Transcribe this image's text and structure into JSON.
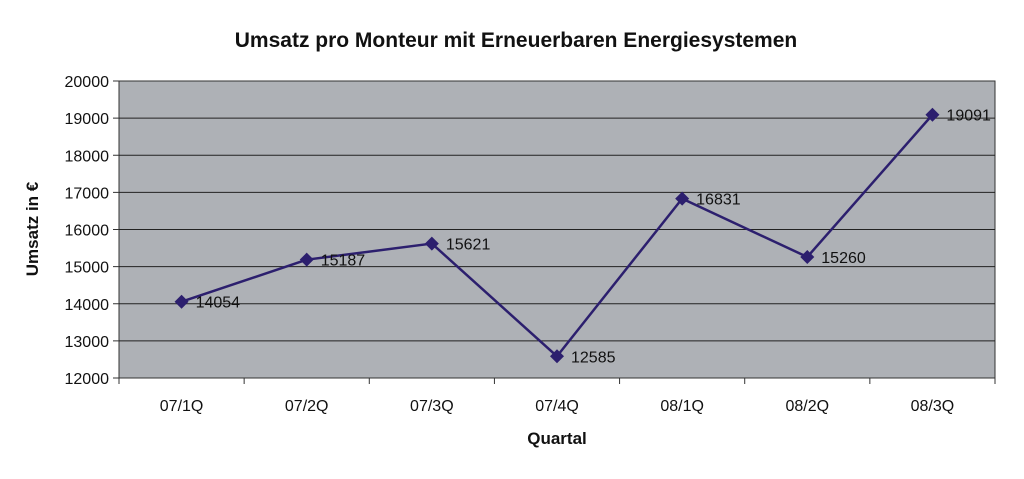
{
  "chart_data": {
    "type": "line",
    "title": "Umsatz pro Monteur mit Erneuerbaren Energiesystemen",
    "xlabel": "Quartal",
    "ylabel": "Umsatz in €",
    "categories": [
      "07/1Q",
      "07/2Q",
      "07/3Q",
      "07/4Q",
      "08/1Q",
      "08/2Q",
      "08/3Q"
    ],
    "series": [
      {
        "values": [
          14054,
          15187,
          15621,
          12585,
          16831,
          15260,
          19091
        ]
      }
    ],
    "ylim": [
      12000,
      20000
    ],
    "yticks": [
      12000,
      13000,
      14000,
      15000,
      16000,
      17000,
      18000,
      19000,
      20000
    ],
    "grid": true,
    "legend": "none",
    "data_labels": true,
    "colors": {
      "plot_background": "#aeb1b6",
      "gridline": "#222222",
      "line": "#2c1f6e",
      "marker": "#2c1f6e"
    }
  }
}
